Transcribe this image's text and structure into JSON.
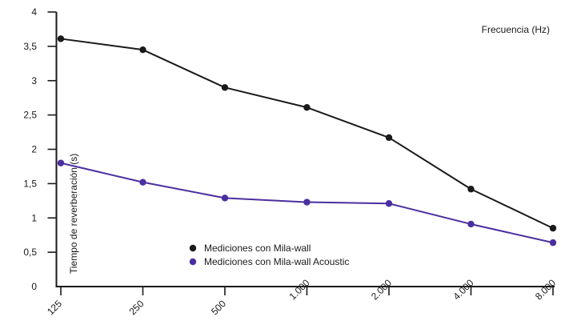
{
  "chart_data": {
    "type": "line",
    "title": "",
    "xlabel": "Frecuencia (Hz)",
    "ylabel": "Tiempo de reverberación (s)",
    "categories": [
      "125",
      "250",
      "500",
      "1.000",
      "2.000",
      "4.000",
      "8.000"
    ],
    "yticks": [
      "0",
      "0,5",
      "1",
      "1,5",
      "2",
      "2,5",
      "3",
      "3,5",
      "4"
    ],
    "ylim": [
      0,
      4
    ],
    "grid": false,
    "legend_position": "bottom-left",
    "series": [
      {
        "name": "Mediciones con Mila-wall",
        "color": "#1a1a1a",
        "values": [
          3.61,
          3.45,
          2.9,
          2.61,
          2.17,
          1.42,
          0.85
        ]
      },
      {
        "name": "Mediciones con Mila-wall Acoustic",
        "color": "#4b2fa0",
        "values": [
          1.8,
          1.52,
          1.29,
          1.23,
          1.21,
          0.91,
          0.64
        ]
      }
    ]
  }
}
